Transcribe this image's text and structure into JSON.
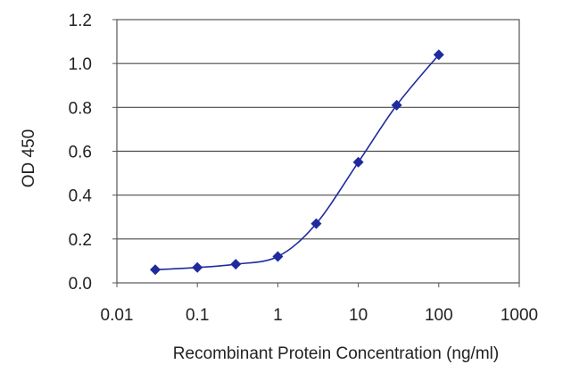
{
  "chart_data": {
    "type": "scatter",
    "xlabel": "Recombinant Protein Concentration (ng/ml)",
    "ylabel": "OD 450",
    "x_scale": "log",
    "xlim": [
      0.01,
      1000
    ],
    "ylim": [
      0,
      1.2
    ],
    "x_ticks": [
      0.01,
      0.1,
      1,
      10,
      100,
      1000
    ],
    "x_tick_labels": [
      "0.01",
      "0.1",
      "1",
      "10",
      "100",
      "1000"
    ],
    "y_ticks": [
      0,
      0.2,
      0.4,
      0.6,
      0.8,
      1.0,
      1.2
    ],
    "y_tick_labels": [
      "0.0",
      "0.2",
      "0.4",
      "0.6",
      "0.8",
      "1.0",
      "1.2"
    ],
    "grid": "horizontal",
    "series": [
      {
        "x": [
          0.03,
          0.1,
          0.3,
          1,
          3,
          10,
          30,
          100
        ],
        "y": [
          0.06,
          0.07,
          0.085,
          0.12,
          0.27,
          0.55,
          0.81,
          1.04
        ],
        "color": "#1f2a9e",
        "marker": "diamond",
        "fit_line": true
      }
    ]
  }
}
